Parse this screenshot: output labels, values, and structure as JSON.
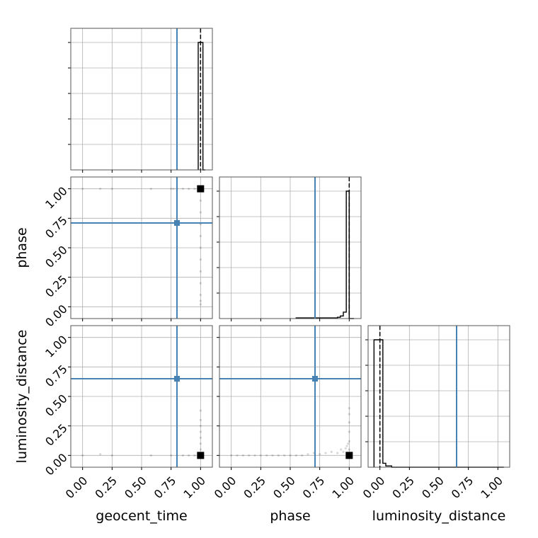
{
  "chart_data": {
    "type": "corner",
    "parameters": [
      "geocent_time",
      "phase",
      "luminosity_distance"
    ],
    "axis_labels": {
      "geocent_time": "geocent_time",
      "phase": "phase",
      "luminosity_distance": "luminosity_distance"
    },
    "axis_range": [
      -0.1,
      1.1
    ],
    "tick_values": [
      0.0,
      0.25,
      0.5,
      0.75,
      1.0
    ],
    "tick_labels": [
      "0.00",
      "0.25",
      "0.50",
      "0.75",
      "1.00"
    ],
    "grid": true,
    "injection": {
      "geocent_time": 0.8,
      "phase": 0.71,
      "luminosity_distance": 0.65,
      "color": "#4682b4"
    },
    "median": {
      "geocent_time": 1.0,
      "phase": 1.0,
      "luminosity_distance": 0.0,
      "color": "#000000"
    },
    "histograms": {
      "geocent_time": {
        "bin_edges": [
          0.98,
          1.0,
          1.02,
          1.04
        ],
        "density": [
          1.0,
          1.0,
          0.0
        ]
      },
      "phase": {
        "bin_edges": [
          0.55,
          0.6,
          0.65,
          0.7,
          0.75,
          0.8,
          0.85,
          0.9,
          0.925,
          0.95,
          0.975,
          1.0,
          1.04
        ],
        "density": [
          0.005,
          0.005,
          0.005,
          0.005,
          0.005,
          0.005,
          0.005,
          0.01,
          0.02,
          0.05,
          0.99,
          0.0
        ]
      },
      "luminosity_distance": {
        "bin_edges": [
          -0.05,
          0.0,
          0.025,
          0.05,
          0.1,
          0.15,
          1.05
        ],
        "density": [
          0.97,
          0.97,
          0.03,
          0.01,
          0.0,
          0.0
        ]
      }
    },
    "scatter": {
      "phase_vs_geocent_time": {
        "x": [
          0.0,
          0.15,
          0.25,
          0.58,
          0.75,
          0.77,
          0.8,
          0.85,
          0.9,
          0.95,
          0.98,
          1.0,
          1.0,
          1.0,
          1.0,
          1.0,
          1.0,
          1.0,
          1.0,
          1.0,
          1.0,
          1.0,
          1.0,
          1.01
        ],
        "y": [
          1.0,
          1.0,
          1.0,
          1.0,
          1.0,
          1.0,
          1.0,
          1.0,
          1.0,
          1.0,
          1.0,
          1.0,
          0.9,
          0.8,
          0.7,
          0.6,
          0.5,
          0.4,
          0.3,
          0.2,
          0.1,
          0.05,
          0.02,
          1.0
        ]
      },
      "luminosity_distance_vs_geocent_time": {
        "x": [
          0.0,
          0.15,
          0.25,
          0.58,
          0.75,
          0.8,
          0.85,
          0.9,
          0.95,
          0.98,
          1.0,
          1.0,
          1.0,
          1.0,
          1.0,
          1.0,
          1.0,
          1.0,
          1.01
        ],
        "y": [
          0.0,
          0.01,
          0.0,
          0.0,
          0.0,
          0.0,
          0.0,
          0.0,
          0.0,
          0.0,
          0.0,
          0.05,
          0.1,
          0.15,
          0.2,
          0.25,
          0.3,
          0.38,
          0.0
        ]
      },
      "luminosity_distance_vs_phase": {
        "x": [
          0.0,
          0.05,
          0.1,
          0.15,
          0.2,
          0.25,
          0.3,
          0.35,
          0.4,
          0.45,
          0.5,
          0.55,
          0.6,
          0.65,
          0.7,
          0.75,
          0.8,
          0.85,
          0.9,
          0.93,
          0.95,
          0.97,
          0.98,
          0.99,
          1.0,
          1.0,
          1.0,
          1.0,
          1.0,
          1.0,
          1.0
        ],
        "y": [
          0.0,
          0.0,
          0.0,
          0.0,
          0.0,
          0.0,
          0.0,
          0.0,
          0.0,
          0.0,
          0.0,
          0.0,
          0.0,
          0.01,
          0.02,
          0.01,
          0.02,
          0.03,
          0.02,
          0.05,
          0.03,
          0.06,
          0.08,
          0.1,
          0.0,
          0.05,
          0.12,
          0.2,
          0.28,
          0.35,
          0.4
        ]
      }
    }
  }
}
